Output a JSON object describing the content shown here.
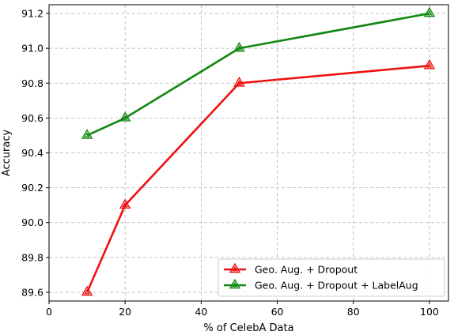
{
  "chart_data": {
    "type": "line",
    "title": "",
    "xlabel": "% of CelebA Data",
    "ylabel": "Accuracy",
    "xlim": [
      0,
      105
    ],
    "ylim": [
      89.55,
      91.25
    ],
    "xticks": [
      0,
      20,
      40,
      60,
      80,
      100
    ],
    "xtick_labels": [
      "0",
      "20",
      "40",
      "60",
      "80",
      "100"
    ],
    "yticks": [
      89.6,
      89.8,
      90.0,
      90.2,
      90.4,
      90.6,
      90.8,
      91.0,
      91.2
    ],
    "ytick_labels": [
      "89.6",
      "89.8",
      "90.0",
      "90.2",
      "90.4",
      "90.6",
      "90.8",
      "91.0",
      "91.2"
    ],
    "grid": true,
    "legend_position": "lower-right",
    "series": [
      {
        "name": "Geo. Aug. + Dropout",
        "color": "#ee1111",
        "marker": "triangle-up",
        "x": [
          10,
          20,
          50,
          100
        ],
        "y": [
          89.6,
          90.1,
          90.8,
          90.9
        ]
      },
      {
        "name": "Geo. Aug. + Dropout + LabelAug",
        "color": "#118811",
        "marker": "triangle-up",
        "x": [
          10,
          20,
          50,
          100
        ],
        "y": [
          90.5,
          90.6,
          91.0,
          91.2
        ]
      }
    ]
  }
}
